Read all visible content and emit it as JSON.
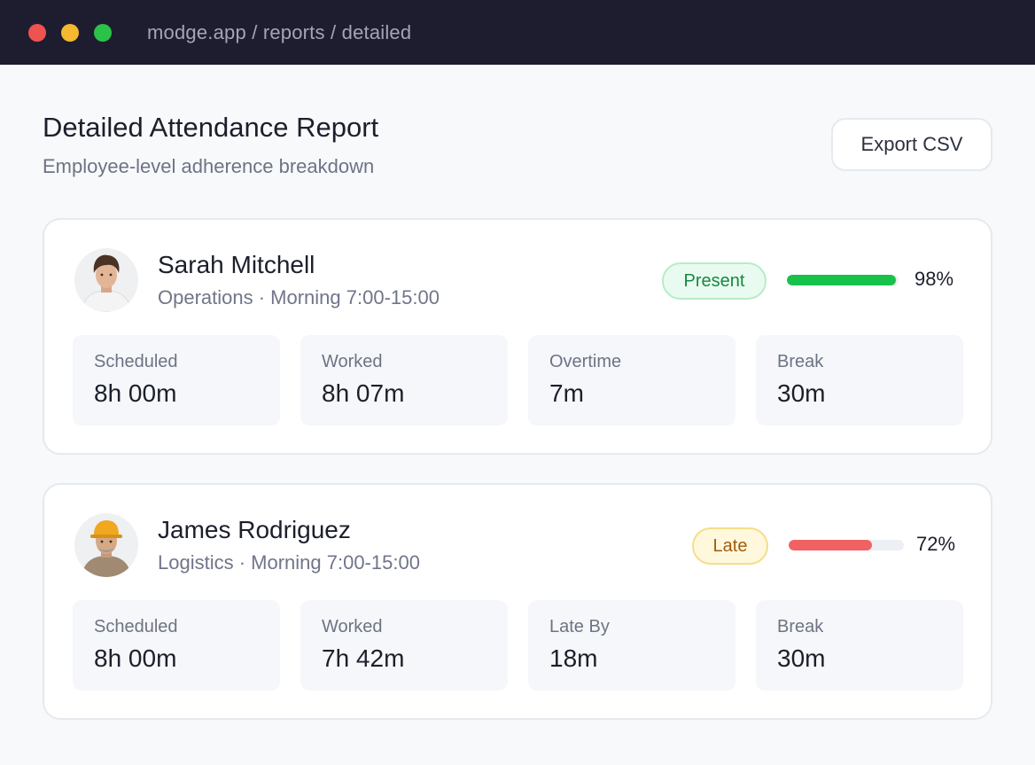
{
  "window": {
    "url": "modge.app / reports / detailed"
  },
  "header": {
    "title": "Detailed Attendance Report",
    "subtitle": "Employee-level adherence breakdown",
    "export_label": "Export CSV"
  },
  "colors": {
    "present_bar": "#16c24a",
    "late_bar": "#f06262"
  },
  "employees": [
    {
      "name": "Sarah Mitchell",
      "meta": "Operations · Morning 7:00-15:00",
      "status": "Present",
      "adherence_pct": 98,
      "adherence_label": "98%",
      "stats": [
        {
          "label": "Scheduled",
          "value": "8h 00m"
        },
        {
          "label": "Worked",
          "value": "8h 07m"
        },
        {
          "label": "Overtime",
          "value": "7m"
        },
        {
          "label": "Break",
          "value": "30m"
        }
      ]
    },
    {
      "name": "James Rodriguez",
      "meta": "Logistics · Morning 7:00-15:00",
      "status": "Late",
      "adherence_pct": 72,
      "adherence_label": "72%",
      "stats": [
        {
          "label": "Scheduled",
          "value": "8h 00m"
        },
        {
          "label": "Worked",
          "value": "7h 42m"
        },
        {
          "label": "Late By",
          "value": "18m"
        },
        {
          "label": "Break",
          "value": "30m"
        }
      ]
    }
  ]
}
